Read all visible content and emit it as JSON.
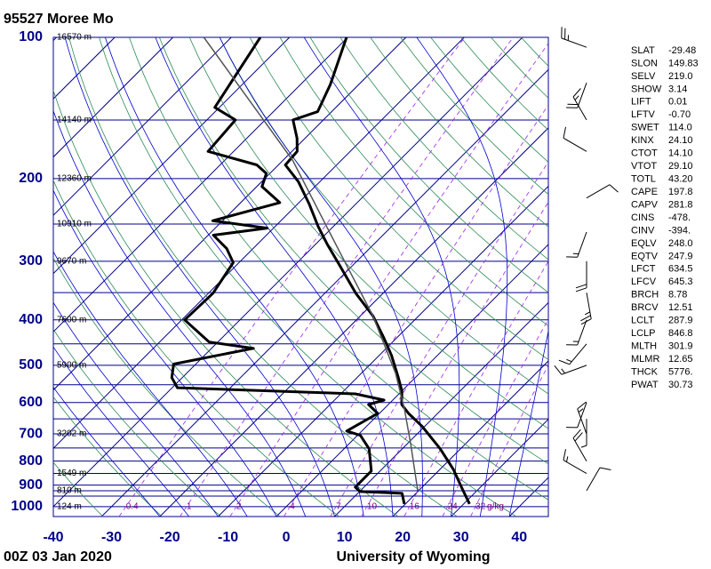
{
  "chart_data": {
    "type": "skewt",
    "title": "95527 Moree Mo",
    "footer_left": "00Z 03 Jan 2020",
    "footer_right": "University of Wyoming",
    "xlim": [
      -40,
      45
    ],
    "ylim": [
      1050,
      100
    ],
    "xticks": [
      -40,
      -30,
      -20,
      -10,
      0,
      10,
      20,
      30,
      40
    ],
    "yticks": [
      100,
      200,
      300,
      400,
      500,
      600,
      700,
      800,
      900,
      1000
    ],
    "log_y": true,
    "isobars": [
      100,
      150,
      200,
      250,
      300,
      350,
      400,
      450,
      500,
      550,
      600,
      650,
      700,
      750,
      800,
      850,
      900,
      925,
      950,
      1000
    ],
    "mixing_ratios": [
      0.4,
      1,
      2,
      4,
      7,
      10,
      16,
      24,
      32
    ],
    "mixing_ratio_unit": "g/kg",
    "height_labels": [
      {
        "pressure": 100,
        "height": 16570,
        "label": "16570 m"
      },
      {
        "pressure": 150,
        "height": 14140,
        "label": "14140 m"
      },
      {
        "pressure": 200,
        "height": 12360,
        "label": "12360 m"
      },
      {
        "pressure": 250,
        "height": 10910,
        "label": "10910 m"
      },
      {
        "pressure": 300,
        "height": 9670,
        "label": "9670 m"
      },
      {
        "pressure": 400,
        "height": 7600,
        "label": "7600 m"
      },
      {
        "pressure": 500,
        "height": 5900,
        "label": "5900 m"
      },
      {
        "pressure": 700,
        "height": 3202,
        "label": "3202 m"
      },
      {
        "pressure": 850,
        "height": 1549,
        "label": "1549 m"
      },
      {
        "pressure": 925,
        "height": 810,
        "label": "810 m"
      },
      {
        "pressure": 1000,
        "height": 124,
        "label": "124 m"
      }
    ],
    "series": [
      {
        "color": "#000000",
        "pressure": [
          987,
          917,
          833,
          753,
          675,
          633,
          606,
          567,
          531,
          476,
          437,
          392,
          351,
          308,
          276,
          253,
          227,
          203,
          187,
          175,
          164,
          150,
          144,
          126,
          100
        ],
        "values": [
          31.0,
          27.2,
          22.3,
          16.5,
          9.6,
          5.0,
          2.3,
          0.0,
          -2.9,
          -7.9,
          -12.2,
          -17.9,
          -24.7,
          -31.9,
          -38.0,
          -42.6,
          -47.9,
          -53.7,
          -58.8,
          -59.1,
          -61.4,
          -65.2,
          -62.4,
          -64.9,
          -70.2
        ]
      },
      {
        "color": "#000000",
        "pressure": [
          987,
          937,
          929,
          909,
          840,
          753,
          705,
          690,
          633,
          606,
          593,
          575,
          558,
          531,
          497,
          460,
          446,
          400,
          351,
          302,
          282,
          264,
          255,
          246,
          225,
          208,
          195,
          187,
          175,
          150,
          141,
          100
        ],
        "values": [
          19.8,
          17.6,
          10.1,
          8.5,
          8.5,
          4.3,
          0.5,
          -2.6,
          -0.3,
          -3.4,
          -1.5,
          -7.5,
          -39.1,
          -41.8,
          -43.8,
          -32.8,
          -41.5,
          -49.5,
          -49.2,
          -51.0,
          -54.5,
          -59.1,
          -51.1,
          -61.7,
          -53.3,
          -59.1,
          -60.6,
          -63.7,
          -74.4,
          -75.1,
          -80.8,
          -85.0
        ]
      },
      {
        "color": "#555555",
        "pressure": [
          924,
          737,
          619,
          520,
          392,
          282,
          183,
          100
        ],
        "values": [
          19.8,
          10.7,
          3.5,
          -4.1,
          -17.9,
          -35.4,
          -58.3,
          -94.7
        ]
      }
    ],
    "winds": {
      "pressure": [
        105,
        125,
        150,
        175,
        220,
        260,
        300,
        350,
        400,
        450,
        500,
        600,
        650,
        700,
        800,
        850,
        925
      ],
      "direction": [
        290,
        200,
        330,
        300,
        60,
        200,
        180,
        170,
        200,
        220,
        250,
        200,
        180,
        340,
        330,
        300,
        30
      ],
      "speed": [
        25,
        20,
        15,
        10,
        10,
        15,
        20,
        25,
        15,
        15,
        15,
        10,
        5,
        15,
        20,
        15,
        10
      ]
    },
    "indices": [
      {
        "name": "SLAT",
        "value": "-29.48"
      },
      {
        "name": "SLON",
        "value": "149.83"
      },
      {
        "name": "SELV",
        "value": "219.0"
      },
      {
        "name": "SHOW",
        "value": "3.14"
      },
      {
        "name": "LIFT",
        "value": "0.01"
      },
      {
        "name": "LFTV",
        "value": "-0.70"
      },
      {
        "name": "SWET",
        "value": "114.0"
      },
      {
        "name": "KINX",
        "value": "24.10"
      },
      {
        "name": "CTOT",
        "value": "14.10"
      },
      {
        "name": "VTOT",
        "value": "29.10"
      },
      {
        "name": "TOTL",
        "value": "43.20"
      },
      {
        "name": "CAPE",
        "value": "197.8"
      },
      {
        "name": "CAPV",
        "value": "281.8"
      },
      {
        "name": "CINS",
        "value": "-478."
      },
      {
        "name": "CINV",
        "value": "-394."
      },
      {
        "name": "EQLV",
        "value": "248.0"
      },
      {
        "name": "EQTV",
        "value": "247.9"
      },
      {
        "name": "LFCT",
        "value": "634.5"
      },
      {
        "name": "LFCV",
        "value": "645.3"
      },
      {
        "name": "BRCH",
        "value": "8.78"
      },
      {
        "name": "BRCV",
        "value": "12.51"
      },
      {
        "name": "LCLT",
        "value": "287.9"
      },
      {
        "name": "LCLP",
        "value": "846.8"
      },
      {
        "name": "MLTH",
        "value": "301.9"
      },
      {
        "name": "MLMR",
        "value": "12.65"
      },
      {
        "name": "THCK",
        "value": "5776."
      },
      {
        "name": "PWAT",
        "value": "30.73"
      }
    ]
  }
}
